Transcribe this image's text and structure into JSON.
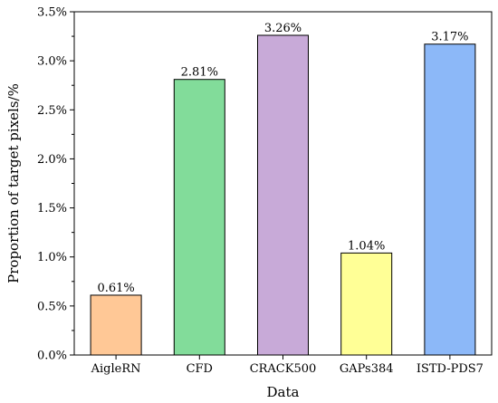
{
  "chart_data": {
    "type": "bar",
    "title": "",
    "xlabel": "Data",
    "ylabel": "Proportion of target pixels/%",
    "categories": [
      "AigleRN",
      "CFD",
      "CRACK500",
      "GAPs384",
      "ISTD-PDS7"
    ],
    "values": [
      0.61,
      2.81,
      3.26,
      1.04,
      3.17
    ],
    "data_labels": [
      "0.61%",
      "2.81%",
      "3.26%",
      "1.04%",
      "3.17%"
    ],
    "colors": [
      "#FFC896",
      "#82DC9A",
      "#C8AAD8",
      "#FFFF96",
      "#8CB8F8"
    ],
    "ylim": [
      0,
      3.5
    ],
    "yticks": [
      0,
      0.5,
      1.0,
      1.5,
      2.0,
      2.5,
      3.0,
      3.5
    ],
    "ytick_labels": [
      "0.0%",
      "0.5%",
      "1.0%",
      "1.5%",
      "2.0%",
      "2.5%",
      "3.0%",
      "3.5%"
    ],
    "grid": false,
    "legend": "none"
  }
}
